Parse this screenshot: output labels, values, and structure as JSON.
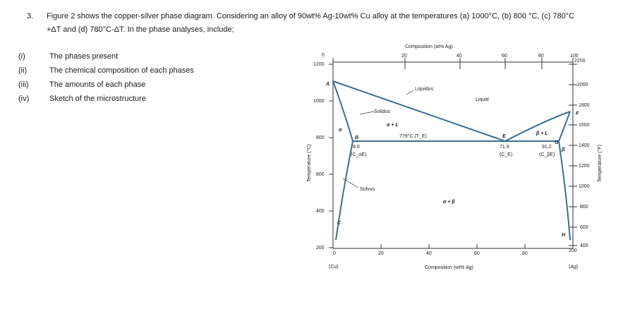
{
  "question": {
    "number": "3.",
    "line1": "Figure 2 shows the copper-silver phase diagram. Considering an alloy of 90wt% Ag-10wt% Cu alloy at the temperatures (a) 1000°C, (b) 800 °C, (c) 780°C",
    "line2": "+ΔT and (d) 780°C-ΔT. In the phase analyses, include;"
  },
  "items": [
    {
      "num": "(i)",
      "text": "The phases present"
    },
    {
      "num": "(ii)",
      "text": "The chemical composition of each phases"
    },
    {
      "num": "(iii)",
      "text": "The amounts of each phase"
    },
    {
      "num": "(iv)",
      "text": "Sketch of the microstructure"
    }
  ],
  "diagram": {
    "top_axis_title": "Composition (at% Ag)",
    "bottom_axis_title": "Composition (wt% Ag)",
    "left_axis_title": "Temperature (°C)",
    "right_axis_title": "Temperature (°F)",
    "left_element": "(Cu)",
    "right_element": "(Ag)",
    "top_ticks": [
      "0",
      "20",
      "40",
      "60",
      "80",
      "100"
    ],
    "bottom_ticks": [
      "0",
      "20",
      "40",
      "60",
      "80",
      "100"
    ],
    "left_ticks": [
      "1200",
      "1000",
      "800",
      "600",
      "400",
      "200"
    ],
    "right_ticks": [
      "2200",
      "2000",
      "1800",
      "1600",
      "1400",
      "1200",
      "1000",
      "800",
      "600",
      "400"
    ],
    "labels": {
      "liquidus": "Liquidus",
      "liquid": "Liquid",
      "solidus": "Solidus",
      "solvus": "Solvus",
      "alpha_l": "α + L",
      "beta_l": "β + L",
      "alpha_beta": "α + β",
      "alpha": "α",
      "beta": "β",
      "eutectic": "779°C (T_E)",
      "c_ae": "8.0",
      "c_ae_sym": "(C_αE)",
      "c_e": "71.9",
      "c_e_sym": "(C_E)",
      "c_be": "91.2",
      "c_be_sym": "(C_βE)",
      "pt_A": "A",
      "pt_B": "B",
      "pt_C": "C",
      "pt_E": "E",
      "pt_F": "F",
      "pt_G": "G",
      "pt_H": "H"
    }
  }
}
